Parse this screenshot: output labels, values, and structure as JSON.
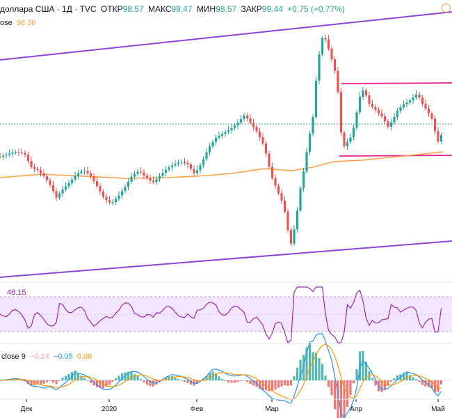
{
  "header": {
    "title": "доллара США · 1Д · TVC",
    "open_label": "ОТКР",
    "open_value": "98.57",
    "high_label": "МАКС",
    "high_value": "99.47",
    "low_label": "МИН",
    "low_value": "98.57",
    "close_label": "ЗАКР",
    "close_value": "99.44",
    "change": "+0.75 (+0.77%)"
  },
  "sma_legend": {
    "label": "ose",
    "value": "98.36"
  },
  "rsi_legend": {
    "value": "48.15"
  },
  "macd_legend": {
    "label": "close 9",
    "hist": "−0.14",
    "macd": "−0.05",
    "signal": "0.09"
  },
  "colors": {
    "up": "#26a69a",
    "down": "#ef5350",
    "sma": "#f7a048",
    "channel": "#8e44d6",
    "range": "#e91e8c",
    "rsi": "#9c27b0",
    "macd": "#2196f3",
    "signal": "#ff9800"
  },
  "chart_data": [
    {
      "type": "candlestick",
      "x": [
        "Дек",
        "2020",
        "Фев",
        "Мар",
        "Апр",
        "Май"
      ],
      "overlays": [
        "moving average 98.36",
        "ascending channel",
        "horizontal range"
      ],
      "last_close": 99.44
    },
    {
      "type": "line",
      "name": "RSI",
      "last_value": 48.15,
      "ylim": [
        0,
        100
      ],
      "bands": [
        30,
        70
      ]
    },
    {
      "type": "bar",
      "name": "MACD",
      "last_values": {
        "hist": -0.14,
        "macd": -0.05,
        "signal": 0.09
      }
    }
  ]
}
